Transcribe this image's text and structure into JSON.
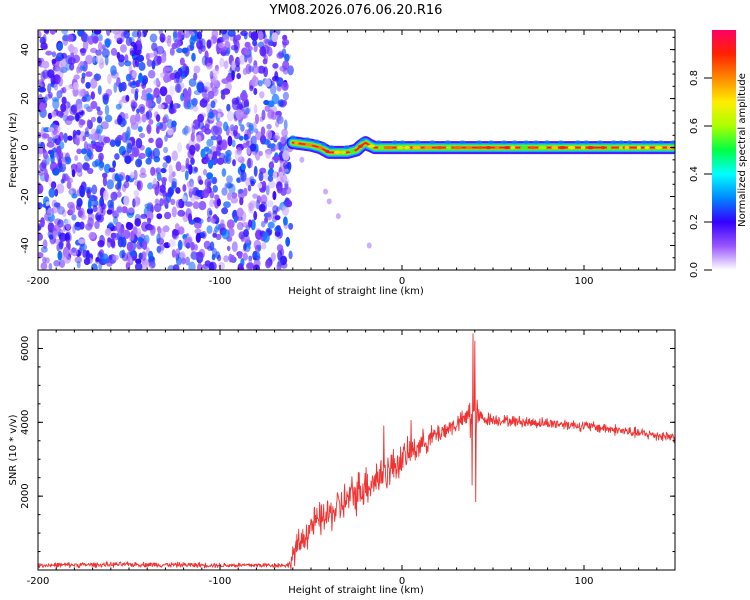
{
  "figure_title": "YM08.2026.076.06.20.R16",
  "chart_data": [
    {
      "type": "heatmap",
      "title": "YM08.2026.076.06.20.R16",
      "xlabel": "Height of straight line (km)",
      "ylabel": "Frequency (Hz)",
      "xlim": [
        -200,
        150
      ],
      "ylim": [
        -50,
        48
      ],
      "x_ticks": [
        -200,
        -100,
        0,
        100
      ],
      "x_tick_labels": [
        "-200",
        "-100",
        "0",
        "100"
      ],
      "y_ticks": [
        -40,
        -20,
        0,
        20,
        40
      ],
      "y_tick_labels": [
        "-40",
        "-20",
        "0",
        "20",
        "40"
      ],
      "noise_region_x": [
        -200,
        -60
      ],
      "signal_start_x": -60,
      "signal_track": {
        "x": [
          -60,
          -55,
          -50,
          -45,
          -40,
          -35,
          -30,
          -25,
          -22,
          -20,
          -18,
          -15,
          -10,
          0,
          10,
          20,
          30,
          40,
          50,
          60,
          70,
          80,
          90,
          100,
          110,
          120,
          130,
          140,
          150
        ],
        "y": [
          2,
          1.5,
          1,
          0,
          -2,
          -2,
          -2,
          -1,
          1,
          2,
          1,
          0,
          0,
          0,
          0,
          0,
          0,
          0,
          0,
          0,
          0,
          0,
          0,
          0,
          0,
          0,
          0,
          0,
          0
        ]
      },
      "faint_points": [
        {
          "x": -42,
          "y": -18
        },
        {
          "x": -35,
          "y": -28
        },
        {
          "x": -40,
          "y": -22
        },
        {
          "x": -18,
          "y": -40
        },
        {
          "x": -55,
          "y": -5
        }
      ],
      "colorbar": {
        "label": "Normalized spectral amplitude",
        "range": [
          0,
          1
        ],
        "ticks": [
          0.0,
          0.2,
          0.4,
          0.6,
          0.8
        ],
        "tick_labels": [
          "0.0",
          "0.2",
          "0.4",
          "0.6",
          "0.8"
        ],
        "stops": [
          "#ffffff",
          "#9955ff",
          "#3300ff",
          "#0088ff",
          "#00ffff",
          "#00ff44",
          "#aaff00",
          "#ffee00",
          "#ff8800",
          "#ff2200",
          "#ff0066"
        ]
      }
    },
    {
      "type": "line",
      "title": "",
      "xlabel": "Height of straight line (km)",
      "ylabel": "SNR (10 * v/v)",
      "xlim": [
        -200,
        150
      ],
      "ylim": [
        0,
        6500
      ],
      "x_ticks": [
        -200,
        -100,
        0,
        100
      ],
      "x_tick_labels": [
        "-200",
        "-100",
        "0",
        "100"
      ],
      "y_ticks": [
        2000,
        4000,
        6000
      ],
      "y_tick_labels": [
        "2000",
        "4000",
        "6000"
      ],
      "series": [
        {
          "name": "SNR",
          "color": "#ee3333",
          "envelope_x": [
            -200,
            -150,
            -100,
            -62,
            -60,
            -50,
            -40,
            -30,
            -20,
            -10,
            0,
            10,
            20,
            30,
            35,
            38,
            40,
            42,
            45,
            55,
            70,
            90,
            110,
            130,
            150
          ],
          "envelope_mean": [
            130,
            150,
            130,
            130,
            400,
            1200,
            1500,
            1900,
            2300,
            2600,
            3000,
            3400,
            3700,
            3950,
            4100,
            4300,
            4200,
            4150,
            4100,
            4050,
            4000,
            3950,
            3850,
            3700,
            3600
          ],
          "envelope_noise": [
            70,
            70,
            70,
            70,
            400,
            450,
            500,
            550,
            600,
            550,
            450,
            350,
            300,
            250,
            250,
            900,
            900,
            250,
            200,
            150,
            150,
            150,
            150,
            150,
            150
          ],
          "spikes": [
            {
              "x": 39,
              "y": 6400
            },
            {
              "x": 40,
              "y": 6200
            },
            {
              "x": 40.5,
              "y": 1850
            },
            {
              "x": 38.5,
              "y": 2300
            },
            {
              "x": 5,
              "y": 4050
            },
            {
              "x": -10,
              "y": 3900
            }
          ]
        }
      ]
    }
  ]
}
